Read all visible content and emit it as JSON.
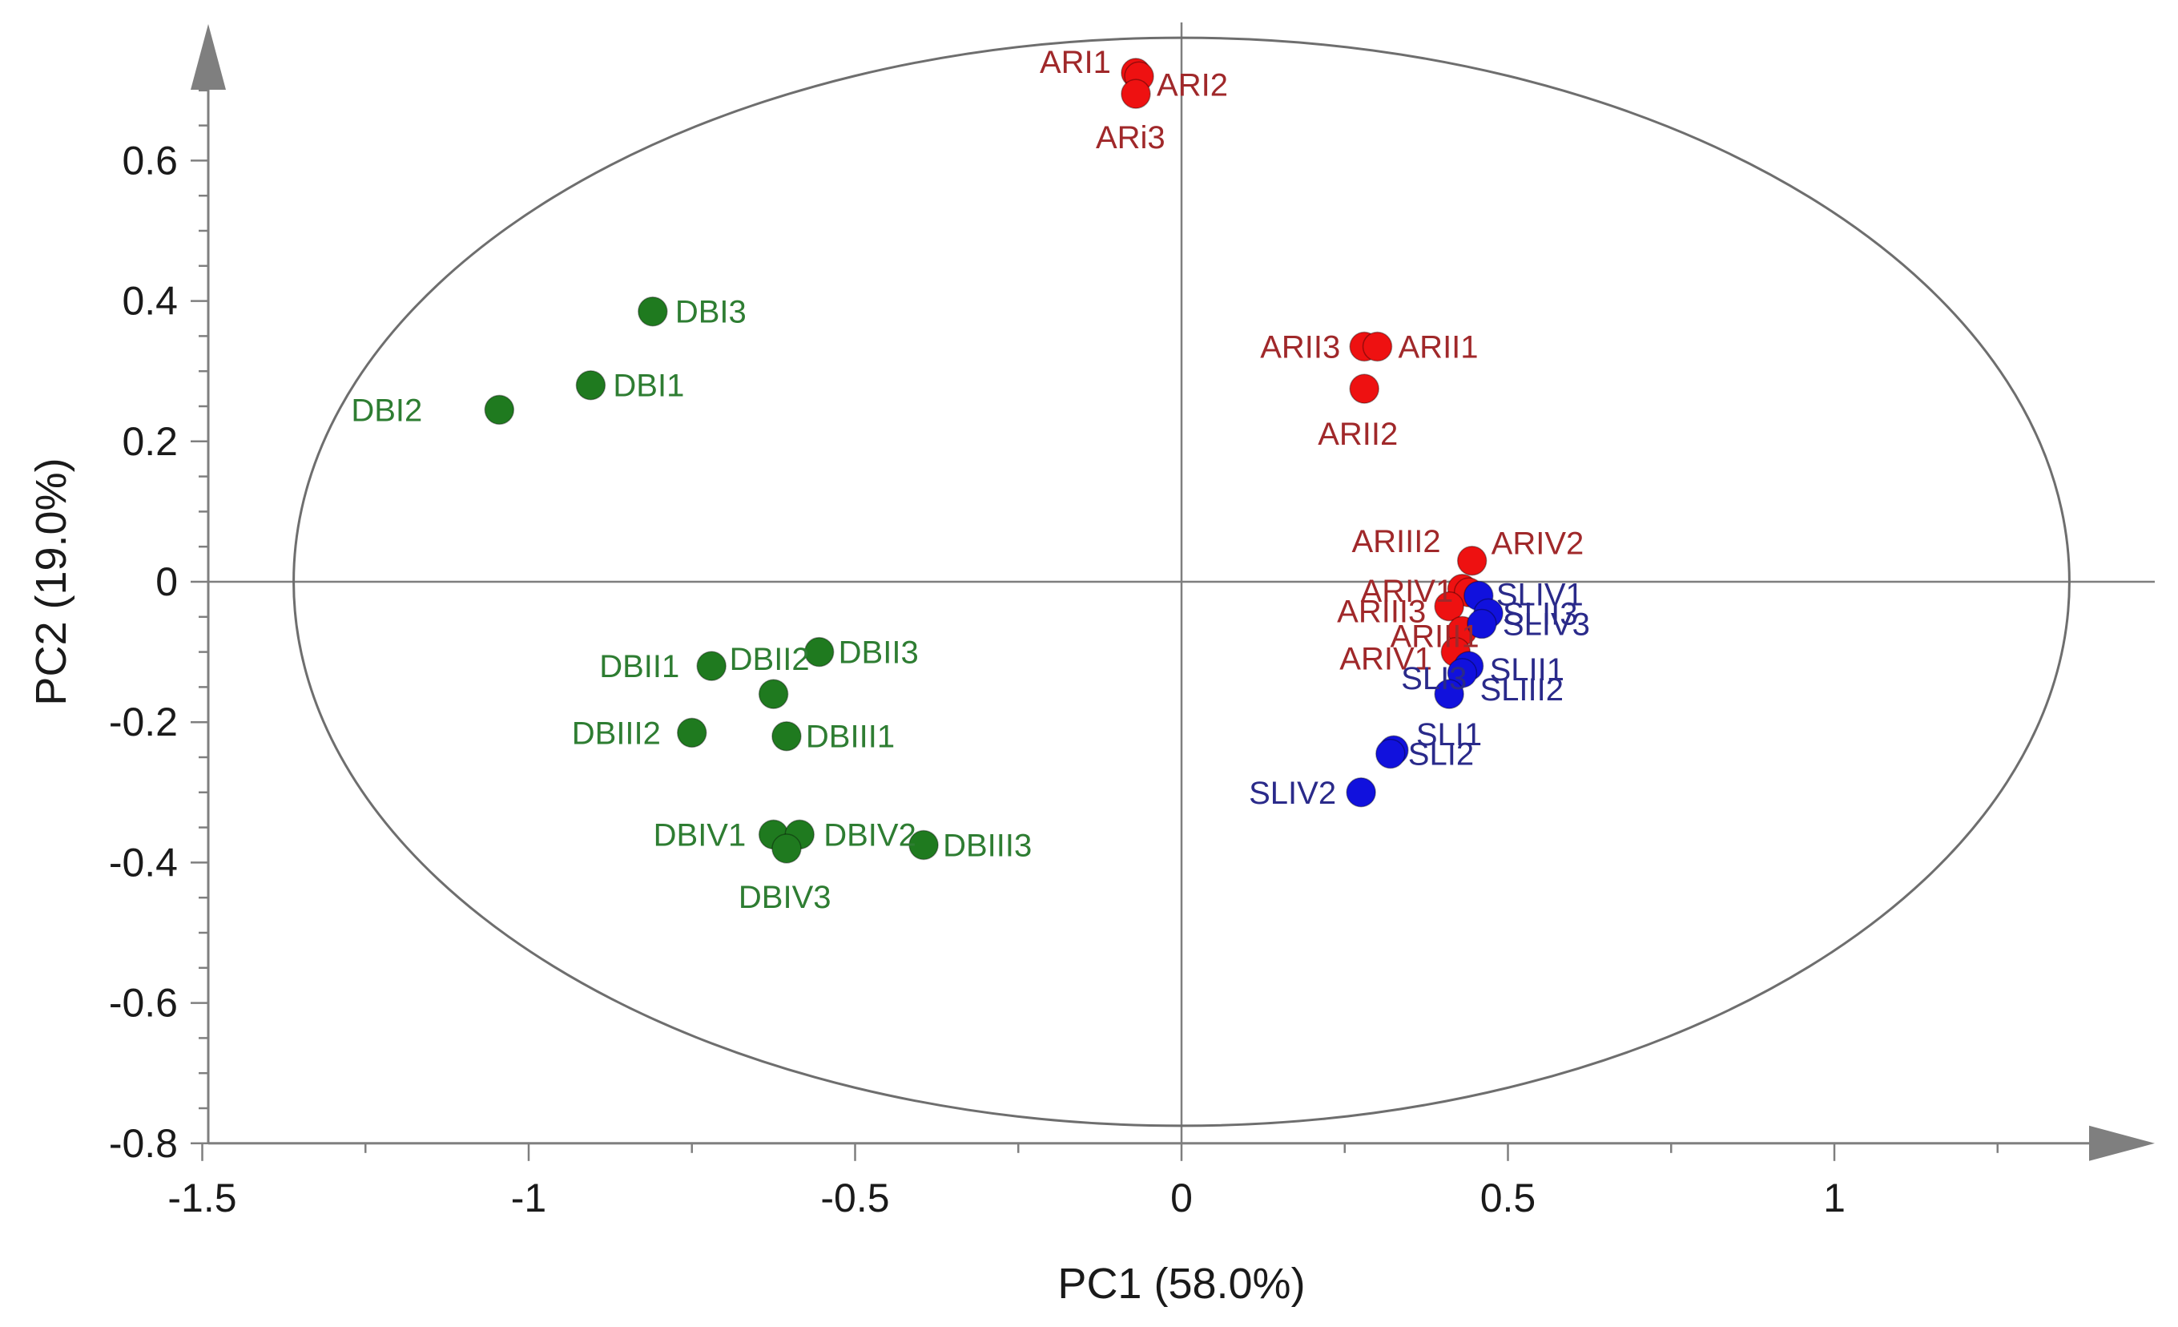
{
  "chart_data": {
    "type": "scatter",
    "title": "",
    "xlabel": "PC1 (58.0%)",
    "ylabel": "PC2 (19.0%)",
    "xlim": [
      -1.5,
      1.5
    ],
    "ylim": [
      -0.8,
      0.8
    ],
    "x_ticks": [
      -1.5,
      -1,
      -0.5,
      0,
      0.5,
      1
    ],
    "x_tick_labels": [
      "-1.5",
      "-1",
      "-0.5",
      "0",
      "0.5",
      "1"
    ],
    "y_ticks": [
      -0.8,
      -0.6,
      -0.4,
      -0.2,
      0,
      0.2,
      0.4,
      0.6
    ],
    "y_tick_labels": [
      "-0.8",
      "-0.6",
      "-0.4",
      "-0.2",
      "0",
      "0.2",
      "0.4",
      "0.6"
    ],
    "grid": false,
    "confidence_ellipse": {
      "center": [
        0,
        0
      ],
      "rx": 1.36,
      "ry": 0.775
    },
    "colors": {
      "DB_point": "#1f7a1f",
      "DB_label": "#2e7d32",
      "AR_point": "#ee1111",
      "AR_label": "#a0282a",
      "SL_point": "#1111dd",
      "SL_label": "#2a2a8a",
      "axis": "#7f7f7f",
      "ellipse": "#6e6e6e"
    },
    "series": [
      {
        "name": "DB",
        "point_color": "#1f7a1f",
        "label_color": "#2e7d32",
        "points": [
          {
            "label": "DBI3",
            "x": -0.81,
            "y": 0.385
          },
          {
            "label": "DBI1",
            "x": -0.905,
            "y": 0.28
          },
          {
            "label": "DBI2",
            "x": -1.045,
            "y": 0.245
          },
          {
            "label": "DBII1",
            "x": -0.72,
            "y": -0.12
          },
          {
            "label": "DBII2",
            "x": -0.625,
            "y": -0.16
          },
          {
            "label": "DBII3",
            "x": -0.555,
            "y": -0.1
          },
          {
            "label": "DBIII2",
            "x": -0.75,
            "y": -0.215
          },
          {
            "label": "DBIII1",
            "x": -0.605,
            "y": -0.22
          },
          {
            "label": "DBIII3",
            "x": -0.395,
            "y": -0.375
          },
          {
            "label": "DBIV1",
            "x": -0.625,
            "y": -0.36
          },
          {
            "label": "DBIV2",
            "x": -0.585,
            "y": -0.36
          },
          {
            "label": "DBIV3",
            "x": -0.605,
            "y": -0.38
          }
        ]
      },
      {
        "name": "AR",
        "point_color": "#ee1111",
        "label_color": "#a0282a",
        "points": [
          {
            "label": "ARI1",
            "x": -0.07,
            "y": 0.725
          },
          {
            "label": "ARI2",
            "x": -0.065,
            "y": 0.72
          },
          {
            "label": "ARi3",
            "x": -0.07,
            "y": 0.695
          },
          {
            "label": "ARII3",
            "x": 0.28,
            "y": 0.335
          },
          {
            "label": "ARII1",
            "x": 0.3,
            "y": 0.335
          },
          {
            "label": "ARII2",
            "x": 0.28,
            "y": 0.275
          },
          {
            "label": "ARIII2",
            "x": 0.43,
            "y": -0.01
          },
          {
            "label": "ARIV2",
            "x": 0.445,
            "y": 0.03
          },
          {
            "label": "ARIV1",
            "x": 0.44,
            "y": -0.015
          },
          {
            "label": "ARIII3",
            "x": 0.41,
            "y": -0.035
          },
          {
            "label": "ARIII1",
            "x": 0.43,
            "y": -0.07
          },
          {
            "label": "ARIV1",
            "x": 0.42,
            "y": -0.1
          }
        ]
      },
      {
        "name": "SL",
        "point_color": "#1111dd",
        "label_color": "#2a2a8a",
        "points": [
          {
            "label": "SLIV1",
            "x": 0.455,
            "y": -0.02
          },
          {
            "label": "SLII3",
            "x": 0.47,
            "y": -0.045
          },
          {
            "label": "SLIV3",
            "x": 0.46,
            "y": -0.06
          },
          {
            "label": "SLII1",
            "x": 0.44,
            "y": -0.12
          },
          {
            "label": "SLIII2",
            "x": 0.43,
            "y": -0.13
          },
          {
            "label": "SLI3",
            "x": 0.41,
            "y": -0.16
          },
          {
            "label": "SLI1",
            "x": 0.325,
            "y": -0.24
          },
          {
            "label": "SLI2",
            "x": 0.32,
            "y": -0.245
          },
          {
            "label": "SLIV2",
            "x": 0.275,
            "y": -0.3
          }
        ]
      }
    ]
  }
}
